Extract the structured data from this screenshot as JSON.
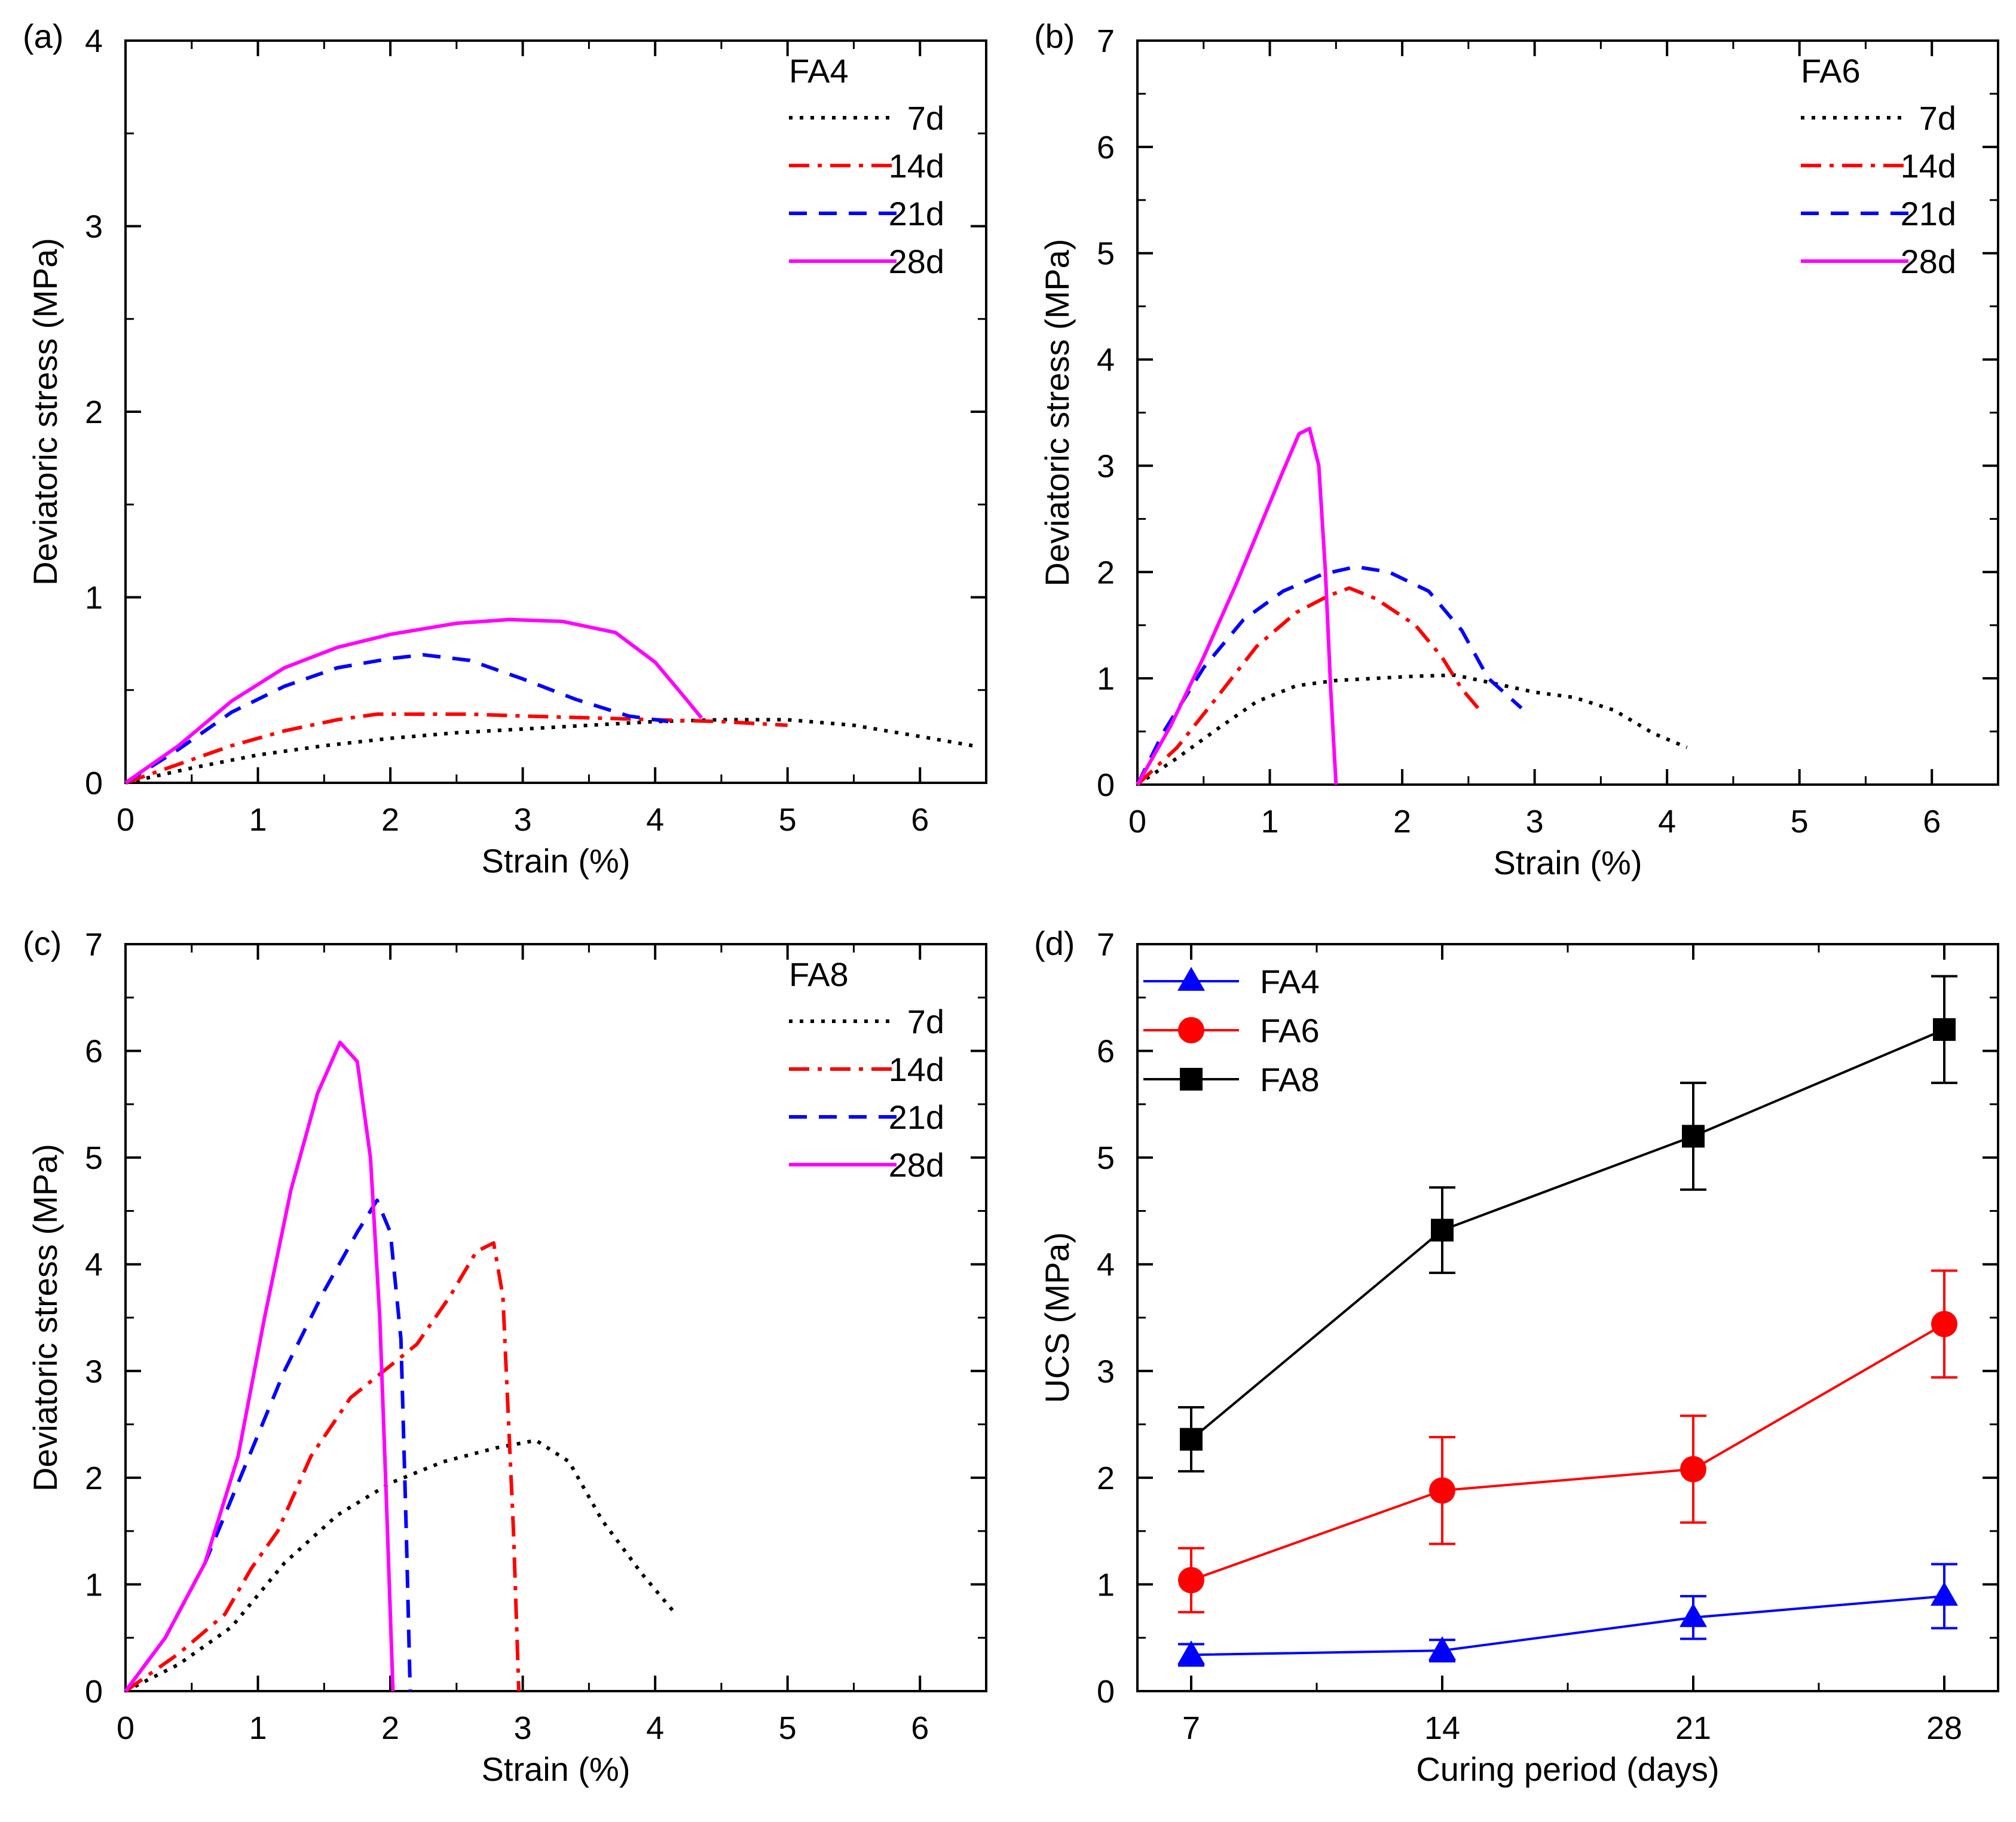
{
  "chart_data": [
    {
      "panel": "(a)",
      "type": "line",
      "legend_title": "FA4",
      "xlabel": "Strain (%)",
      "ylabel": "Deviatoric stress (MPa)",
      "xlim": [
        0,
        6.5
      ],
      "ylim": [
        0,
        4
      ],
      "xticks": [
        0,
        1,
        2,
        3,
        4,
        5,
        6
      ],
      "yticks": [
        0,
        1,
        2,
        3,
        4
      ],
      "legend_position": "top-right",
      "series": [
        {
          "name": "7d",
          "color": "#000000",
          "style": "dotted",
          "x": [
            0,
            0.5,
            1.0,
            1.5,
            2.0,
            2.5,
            3.0,
            3.5,
            4.0,
            4.5,
            5.0,
            5.5,
            6.0,
            6.4
          ],
          "y": [
            0,
            0.08,
            0.15,
            0.2,
            0.24,
            0.27,
            0.29,
            0.31,
            0.33,
            0.34,
            0.34,
            0.31,
            0.25,
            0.2
          ]
        },
        {
          "name": "14d",
          "color": "#ff0000",
          "style": "dashdot",
          "x": [
            0,
            0.4,
            0.8,
            1.2,
            1.6,
            1.9,
            2.2,
            2.6,
            3.0,
            3.5,
            4.0,
            4.5,
            5.0
          ],
          "y": [
            0,
            0.1,
            0.2,
            0.28,
            0.34,
            0.37,
            0.37,
            0.37,
            0.36,
            0.35,
            0.34,
            0.33,
            0.31
          ]
        },
        {
          "name": "21d",
          "color": "#0000ff",
          "style": "dashed",
          "x": [
            0,
            0.4,
            0.8,
            1.2,
            1.6,
            2.0,
            2.25,
            2.6,
            3.0,
            3.4,
            3.8,
            4.1
          ],
          "y": [
            0,
            0.18,
            0.38,
            0.52,
            0.62,
            0.67,
            0.69,
            0.66,
            0.56,
            0.45,
            0.36,
            0.33
          ]
        },
        {
          "name": "28d",
          "color": "#ff00ff",
          "style": "solid",
          "x": [
            0,
            0.4,
            0.8,
            1.2,
            1.6,
            2.0,
            2.5,
            2.9,
            3.3,
            3.7,
            4.0,
            4.2,
            4.35
          ],
          "y": [
            0,
            0.2,
            0.44,
            0.62,
            0.73,
            0.8,
            0.86,
            0.88,
            0.87,
            0.81,
            0.65,
            0.48,
            0.35
          ]
        }
      ]
    },
    {
      "panel": "(b)",
      "type": "line",
      "legend_title": "FA6",
      "xlabel": "Strain (%)",
      "ylabel": "Deviatoric stress (MPa)",
      "xlim": [
        0,
        6.5
      ],
      "ylim": [
        0,
        7
      ],
      "xticks": [
        0,
        1,
        2,
        3,
        4,
        5,
        6
      ],
      "yticks": [
        0,
        1,
        2,
        3,
        4,
        5,
        6,
        7
      ],
      "legend_position": "top-right",
      "series": [
        {
          "name": "7d",
          "color": "#000000",
          "style": "dotted",
          "x": [
            0,
            0.3,
            0.6,
            0.9,
            1.2,
            1.5,
            1.8,
            2.1,
            2.4,
            2.7,
            3.0,
            3.3,
            3.6,
            3.9,
            4.15
          ],
          "y": [
            0,
            0.25,
            0.52,
            0.78,
            0.93,
            0.98,
            1.0,
            1.02,
            1.03,
            0.95,
            0.87,
            0.82,
            0.7,
            0.48,
            0.35
          ]
        },
        {
          "name": "14d",
          "color": "#ff0000",
          "style": "dashdot",
          "x": [
            0,
            0.3,
            0.6,
            0.9,
            1.2,
            1.45,
            1.6,
            1.8,
            2.1,
            2.3,
            2.45,
            2.6
          ],
          "y": [
            0,
            0.35,
            0.82,
            1.3,
            1.62,
            1.78,
            1.85,
            1.75,
            1.5,
            1.2,
            0.9,
            0.68
          ]
        },
        {
          "name": "21d",
          "color": "#0000ff",
          "style": "dashed",
          "x": [
            0,
            0.2,
            0.5,
            0.8,
            1.1,
            1.4,
            1.65,
            1.9,
            2.2,
            2.45,
            2.65,
            2.9
          ],
          "y": [
            0,
            0.5,
            1.1,
            1.55,
            1.82,
            1.98,
            2.05,
            2.0,
            1.82,
            1.45,
            1.0,
            0.72
          ]
        },
        {
          "name": "28d",
          "color": "#ff00ff",
          "style": "solid",
          "x": [
            0,
            0.25,
            0.5,
            0.75,
            0.95,
            1.1,
            1.22,
            1.3,
            1.37,
            1.42,
            1.46,
            1.5
          ],
          "y": [
            0,
            0.55,
            1.2,
            1.9,
            2.5,
            2.95,
            3.3,
            3.35,
            3.0,
            2.0,
            0.9,
            0
          ]
        }
      ]
    },
    {
      "panel": "(c)",
      "type": "line",
      "legend_title": "FA8",
      "xlabel": "Strain (%)",
      "ylabel": "Deviatoric stress (MPa)",
      "xlim": [
        0,
        6.5
      ],
      "ylim": [
        0,
        7
      ],
      "xticks": [
        0,
        1,
        2,
        3,
        4,
        5,
        6
      ],
      "yticks": [
        0,
        1,
        2,
        3,
        4,
        5,
        6,
        7
      ],
      "legend_position": "top-right",
      "series": [
        {
          "name": "7d",
          "color": "#000000",
          "style": "dotted",
          "x": [
            0,
            0.4,
            0.8,
            1.2,
            1.6,
            2.0,
            2.4,
            2.8,
            3.1,
            3.35,
            3.6,
            3.9,
            4.15
          ],
          "y": [
            0,
            0.25,
            0.6,
            1.2,
            1.65,
            1.95,
            2.15,
            2.28,
            2.35,
            2.15,
            1.6,
            1.1,
            0.73
          ]
        },
        {
          "name": "14d",
          "color": "#ff0000",
          "style": "dashdot",
          "x": [
            0,
            0.4,
            0.75,
            0.95,
            1.15,
            1.4,
            1.7,
            2.0,
            2.2,
            2.45,
            2.65,
            2.78,
            2.85,
            2.93,
            2.97
          ],
          "y": [
            0,
            0.35,
            0.72,
            1.15,
            1.5,
            2.2,
            2.75,
            3.05,
            3.25,
            3.7,
            4.12,
            4.2,
            3.7,
            1.5,
            0
          ]
        },
        {
          "name": "21d",
          "color": "#0000ff",
          "style": "dashed",
          "x": [
            0,
            0.3,
            0.6,
            0.9,
            1.2,
            1.5,
            1.75,
            1.9,
            2.0,
            2.08,
            2.12,
            2.15
          ],
          "y": [
            0,
            0.5,
            1.2,
            2.1,
            3.0,
            3.75,
            4.3,
            4.6,
            4.3,
            3.3,
            1.5,
            0
          ]
        },
        {
          "name": "28d",
          "color": "#ff00ff",
          "style": "solid",
          "x": [
            0,
            0.3,
            0.6,
            0.85,
            1.05,
            1.25,
            1.45,
            1.62,
            1.75,
            1.85,
            1.92,
            1.97,
            2.02
          ],
          "y": [
            0,
            0.5,
            1.2,
            2.2,
            3.5,
            4.7,
            5.6,
            6.08,
            5.9,
            5.0,
            3.5,
            1.8,
            0
          ]
        }
      ]
    },
    {
      "panel": "(d)",
      "type": "line",
      "xlabel": "Curing period (days)",
      "ylabel": "UCS (MPa)",
      "xlim": [
        5.5,
        29.5
      ],
      "ylim": [
        0,
        7
      ],
      "xticks": [
        7,
        14,
        21,
        28
      ],
      "yticks": [
        0,
        1,
        2,
        3,
        4,
        5,
        6,
        7
      ],
      "legend_position": "top-left",
      "series": [
        {
          "name": "FA4",
          "color": "#0000ff",
          "marker": "triangle",
          "x": [
            7,
            14,
            21,
            28
          ],
          "y": [
            0.34,
            0.38,
            0.69,
            0.89
          ],
          "error": [
            0.1,
            0.1,
            0.2,
            0.3
          ]
        },
        {
          "name": "FA6",
          "color": "#ff0000",
          "marker": "circle",
          "x": [
            7,
            14,
            21,
            28
          ],
          "y": [
            1.04,
            1.88,
            2.08,
            3.44
          ],
          "error": [
            0.3,
            0.5,
            0.5,
            0.5
          ]
        },
        {
          "name": "FA8",
          "color": "#000000",
          "marker": "square",
          "x": [
            7,
            14,
            21,
            28
          ],
          "y": [
            2.36,
            4.32,
            5.2,
            6.2
          ],
          "error": [
            0.3,
            0.4,
            0.5,
            0.5
          ]
        }
      ]
    }
  ]
}
